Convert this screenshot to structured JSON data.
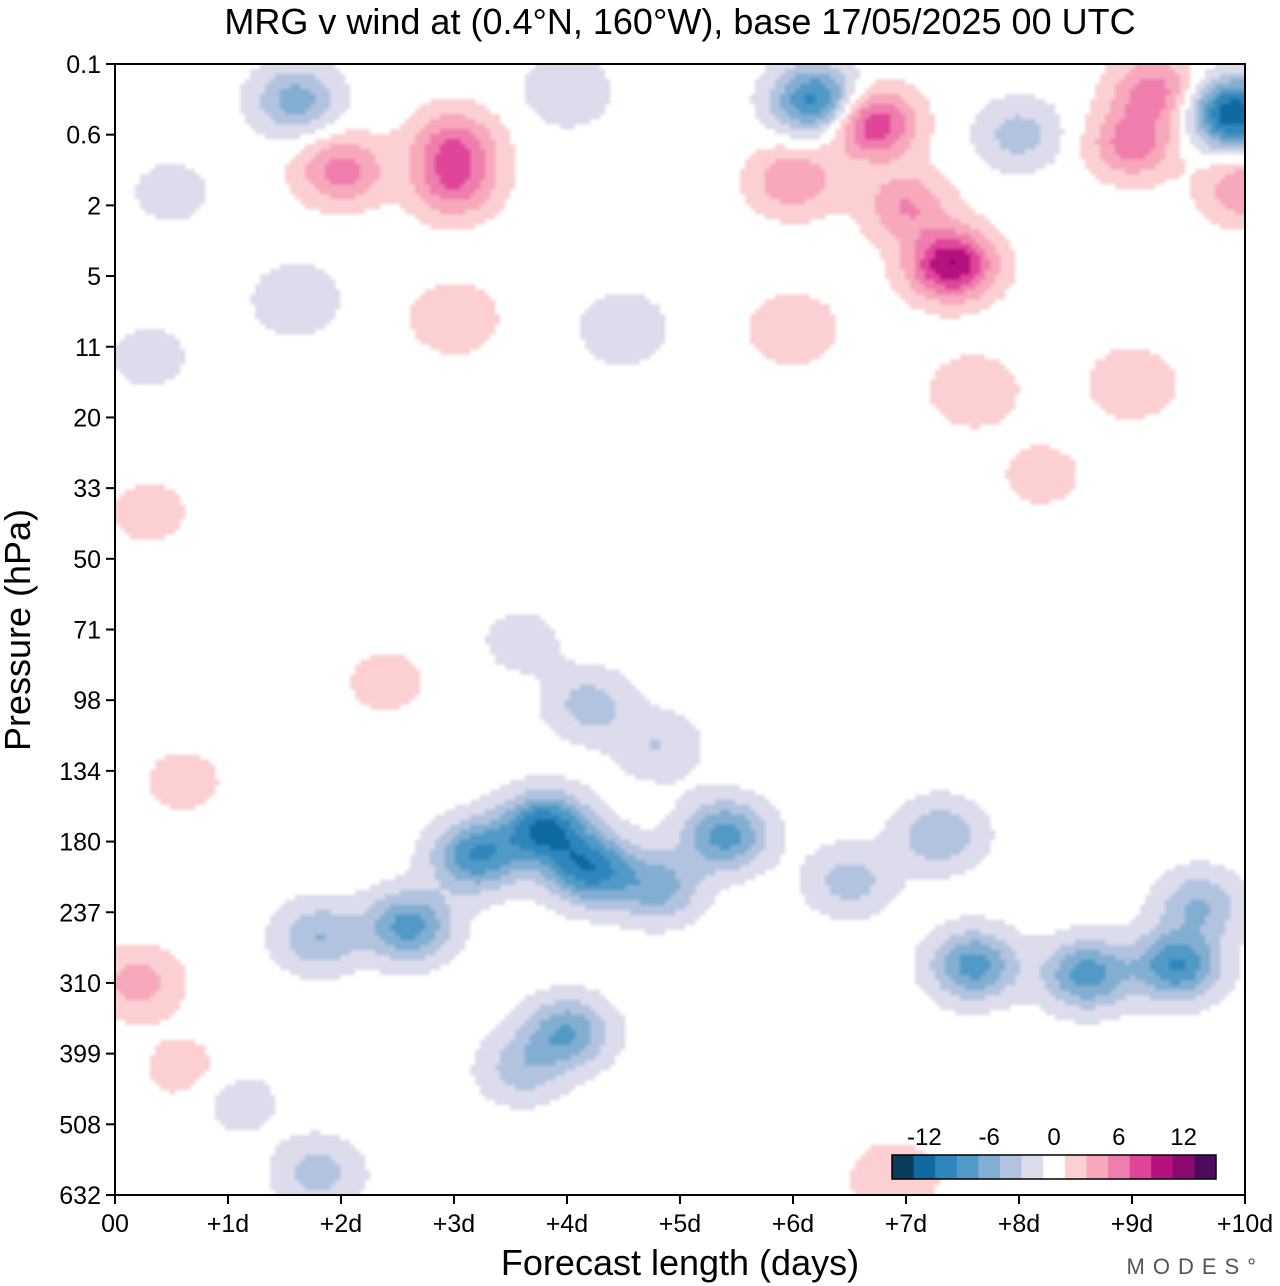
{
  "chart_data": {
    "type": "heatmap",
    "title": "MRG v wind at (0.4°N, 160°W),  base 17/05/2025  00 UTC",
    "xlabel": "Forecast length (days)",
    "ylabel": "Pressure (hPa)",
    "x_ticks": [
      "00",
      "+1d",
      "+2d",
      "+3d",
      "+4d",
      "+5d",
      "+6d",
      "+7d",
      "+8d",
      "+9d",
      "+10d"
    ],
    "y_ticks": [
      "0.1",
      "0.6",
      "2",
      "5",
      "11",
      "20",
      "33",
      "50",
      "71",
      "98",
      "134",
      "180",
      "237",
      "310",
      "399",
      "508",
      "632"
    ],
    "xlim": [
      0,
      10
    ],
    "ylim": [
      0.1,
      632
    ],
    "colorbar": {
      "levels": [
        -15,
        -13,
        -11,
        -9,
        -7,
        -5,
        -3,
        -1,
        1,
        3,
        5,
        7,
        9,
        11,
        13,
        15
      ],
      "tick_labels": [
        "-12",
        "-6",
        "0",
        "6",
        "12"
      ],
      "tick_values": [
        -12,
        -6,
        0,
        6,
        12
      ],
      "colors": [
        "#0a3d5c",
        "#0f6aa0",
        "#2f86bd",
        "#5199c6",
        "#82aed2",
        "#b2c3df",
        "#dcdcec",
        "#ffffff",
        "#fcd0d2",
        "#f7a8bb",
        "#ef7eae",
        "#e0459a",
        "#b5127f",
        "#8a0a73",
        "#4e0a5e"
      ]
    },
    "features": [
      {
        "x": 3.8,
        "p": 170,
        "v": -11
      },
      {
        "x": 4.2,
        "p": 200,
        "v": -10
      },
      {
        "x": 3.2,
        "p": 190,
        "v": -9
      },
      {
        "x": 5.4,
        "p": 175,
        "v": -8
      },
      {
        "x": 4.8,
        "p": 215,
        "v": -6
      },
      {
        "x": 2.6,
        "p": 250,
        "v": -8
      },
      {
        "x": 1.8,
        "p": 260,
        "v": -5
      },
      {
        "x": 4.0,
        "p": 370,
        "v": -7
      },
      {
        "x": 3.6,
        "p": 420,
        "v": -4
      },
      {
        "x": 6.5,
        "p": 210,
        "v": -4
      },
      {
        "x": 7.6,
        "p": 290,
        "v": -8
      },
      {
        "x": 8.6,
        "p": 300,
        "v": -8
      },
      {
        "x": 9.4,
        "p": 290,
        "v": -9
      },
      {
        "x": 7.3,
        "p": 175,
        "v": -5
      },
      {
        "x": 9.6,
        "p": 230,
        "v": -5
      },
      {
        "x": 1.1,
        "p": 470,
        "v": -2
      },
      {
        "x": 1.8,
        "p": 590,
        "v": -4
      },
      {
        "x": 4.8,
        "p": 120,
        "v": -3
      },
      {
        "x": 4.2,
        "p": 100,
        "v": -4
      },
      {
        "x": 3.6,
        "p": 75,
        "v": -2
      },
      {
        "x": 0.2,
        "p": 310,
        "v": 4
      },
      {
        "x": 0.6,
        "p": 140,
        "v": 2
      },
      {
        "x": 0.6,
        "p": 420,
        "v": 2
      },
      {
        "x": 2.4,
        "p": 90,
        "v": 2
      },
      {
        "x": 6.9,
        "p": 600,
        "v": 3
      },
      {
        "x": 6.2,
        "p": 0.25,
        "v": -10
      },
      {
        "x": 1.6,
        "p": 0.25,
        "v": -6
      },
      {
        "x": 9.9,
        "p": 0.35,
        "v": -13
      },
      {
        "x": 9.2,
        "p": 0.2,
        "v": 6
      },
      {
        "x": 7.4,
        "p": 4.3,
        "v": 11
      },
      {
        "x": 7.0,
        "p": 2.0,
        "v": 5
      },
      {
        "x": 6.7,
        "p": 0.45,
        "v": 9
      },
      {
        "x": 6.0,
        "p": 1.3,
        "v": 5
      },
      {
        "x": 2.0,
        "p": 1.1,
        "v": 6
      },
      {
        "x": 3.0,
        "p": 0.7,
        "v": 6
      },
      {
        "x": 3.0,
        "p": 1.4,
        "v": 6
      },
      {
        "x": 9.0,
        "p": 0.7,
        "v": 6
      },
      {
        "x": 10.0,
        "p": 1.5,
        "v": 5
      },
      {
        "x": 7.6,
        "p": 16,
        "v": 3
      },
      {
        "x": 8.2,
        "p": 30,
        "v": 2
      },
      {
        "x": 9.0,
        "p": 15,
        "v": 3
      },
      {
        "x": 6.0,
        "p": 9,
        "v": 3
      },
      {
        "x": 3.0,
        "p": 8,
        "v": 3
      },
      {
        "x": 0.3,
        "p": 38,
        "v": 2
      },
      {
        "x": 4.0,
        "p": 0.2,
        "v": -3
      },
      {
        "x": 8.0,
        "p": 0.6,
        "v": -4
      },
      {
        "x": 1.6,
        "p": 6.5,
        "v": -3
      },
      {
        "x": 4.5,
        "p": 9,
        "v": -3
      },
      {
        "x": 0.5,
        "p": 1.6,
        "v": -2
      },
      {
        "x": 0.3,
        "p": 12,
        "v": -2
      }
    ]
  },
  "branding": {
    "text": "MODES°"
  }
}
